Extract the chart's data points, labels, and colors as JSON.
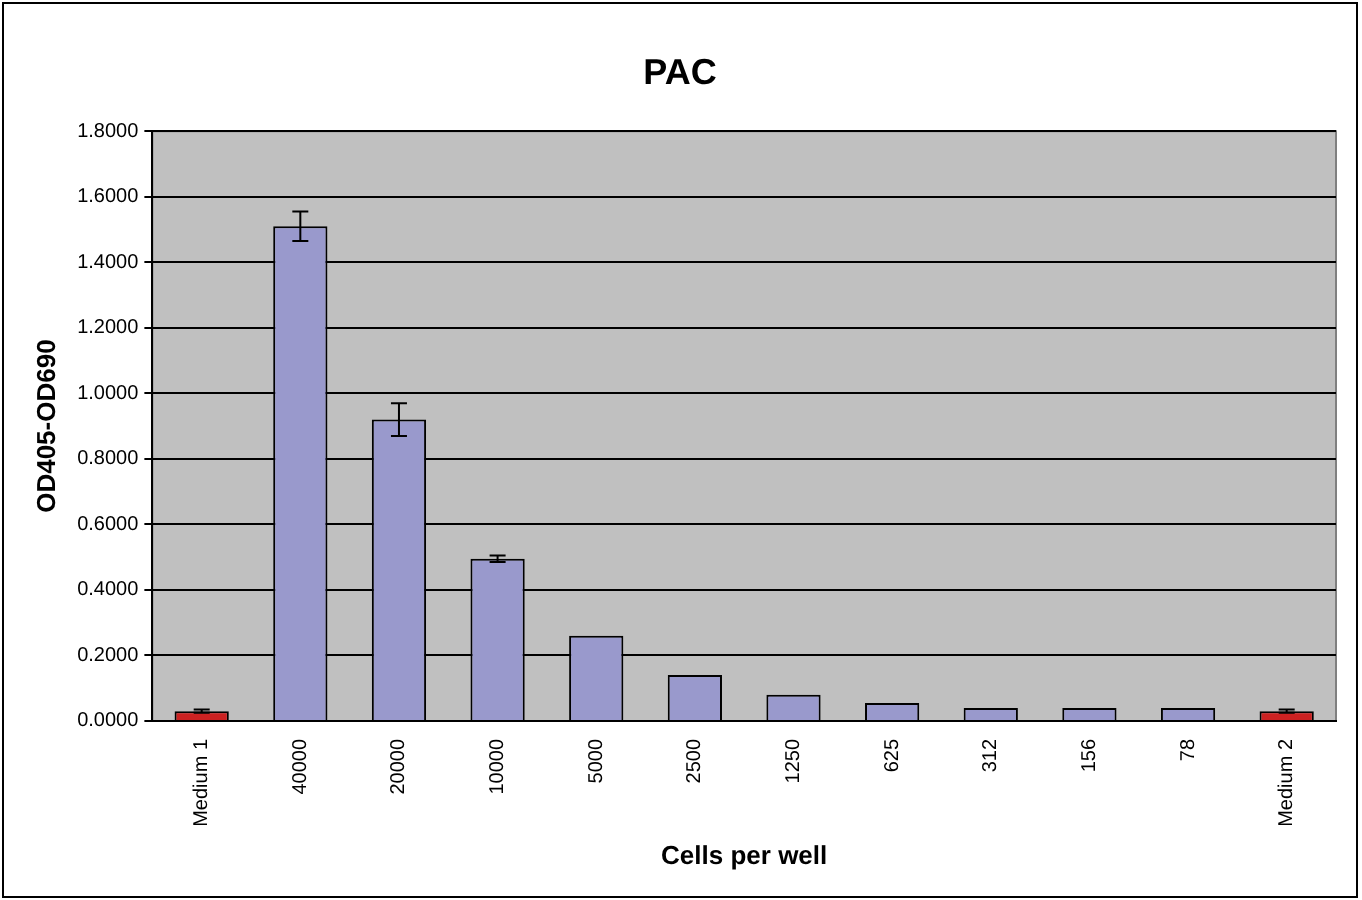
{
  "chart_data": {
    "type": "bar",
    "title": "PAC",
    "xlabel": "Cells per well",
    "ylabel": "OD405-OD690",
    "categories": [
      "Medium 1",
      "40000",
      "20000",
      "10000",
      "5000",
      "2500",
      "1250",
      "625",
      "312",
      "156",
      "78",
      "Medium 2"
    ],
    "values": [
      0.03,
      1.51,
      0.92,
      0.495,
      0.26,
      0.14,
      0.08,
      0.055,
      0.04,
      0.04,
      0.04,
      0.03
    ],
    "errors": [
      0.005,
      0.045,
      0.05,
      0.01,
      null,
      null,
      null,
      null,
      null,
      null,
      null,
      0.005
    ],
    "colors": [
      "#cc2222",
      "#9999cc",
      "#9999cc",
      "#9999cc",
      "#9999cc",
      "#9999cc",
      "#9999cc",
      "#9999cc",
      "#9999cc",
      "#9999cc",
      "#9999cc",
      "#cc2222"
    ],
    "ylim": [
      0,
      1.8
    ],
    "yticks": [
      {
        "value": 0,
        "label": "0.0000"
      },
      {
        "value": 0.2,
        "label": "0.2000"
      },
      {
        "value": 0.4,
        "label": "0.4000"
      },
      {
        "value": 0.6,
        "label": "0.6000"
      },
      {
        "value": 0.8,
        "label": "0.8000"
      },
      {
        "value": 1,
        "label": "1.0000"
      },
      {
        "value": 1.2,
        "label": "1.2000"
      },
      {
        "value": 1.4,
        "label": "1.4000"
      },
      {
        "value": 1.6,
        "label": "1.6000"
      },
      {
        "value": 1.8,
        "label": "1.8000"
      }
    ],
    "grid": "y",
    "legend": false
  }
}
